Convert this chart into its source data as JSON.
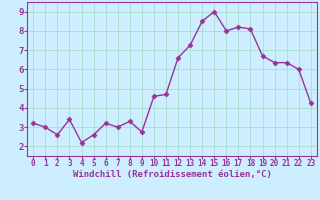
{
  "x": [
    0,
    1,
    2,
    3,
    4,
    5,
    6,
    7,
    8,
    9,
    10,
    11,
    12,
    13,
    14,
    15,
    16,
    17,
    18,
    19,
    20,
    21,
    22,
    23
  ],
  "y": [
    3.2,
    3.0,
    2.6,
    3.4,
    2.2,
    2.6,
    3.2,
    3.0,
    3.3,
    2.75,
    4.6,
    4.7,
    6.6,
    7.25,
    8.5,
    9.0,
    8.0,
    8.2,
    8.1,
    6.7,
    6.35,
    6.35,
    6.0,
    4.25
  ],
  "line_color": "#993399",
  "marker": "D",
  "markersize": 2.5,
  "linewidth": 1.0,
  "xlabel": "Windchill (Refroidissement éolien,°C)",
  "xlabel_color": "#993399",
  "xlabel_fontsize": 6.5,
  "xtick_fontsize": 5.5,
  "ytick_fontsize": 6.5,
  "ylim": [
    1.5,
    9.5
  ],
  "xlim": [
    -0.5,
    23.5
  ],
  "yticks": [
    2,
    3,
    4,
    5,
    6,
    7,
    8,
    9
  ],
  "xticks": [
    0,
    1,
    2,
    3,
    4,
    5,
    6,
    7,
    8,
    9,
    10,
    11,
    12,
    13,
    14,
    15,
    16,
    17,
    18,
    19,
    20,
    21,
    22,
    23
  ],
  "bg_color": "#cceeff",
  "grid_color": "#aaddcc",
  "spine_color": "#993399",
  "tick_color": "#993399",
  "label_color": "#993399"
}
